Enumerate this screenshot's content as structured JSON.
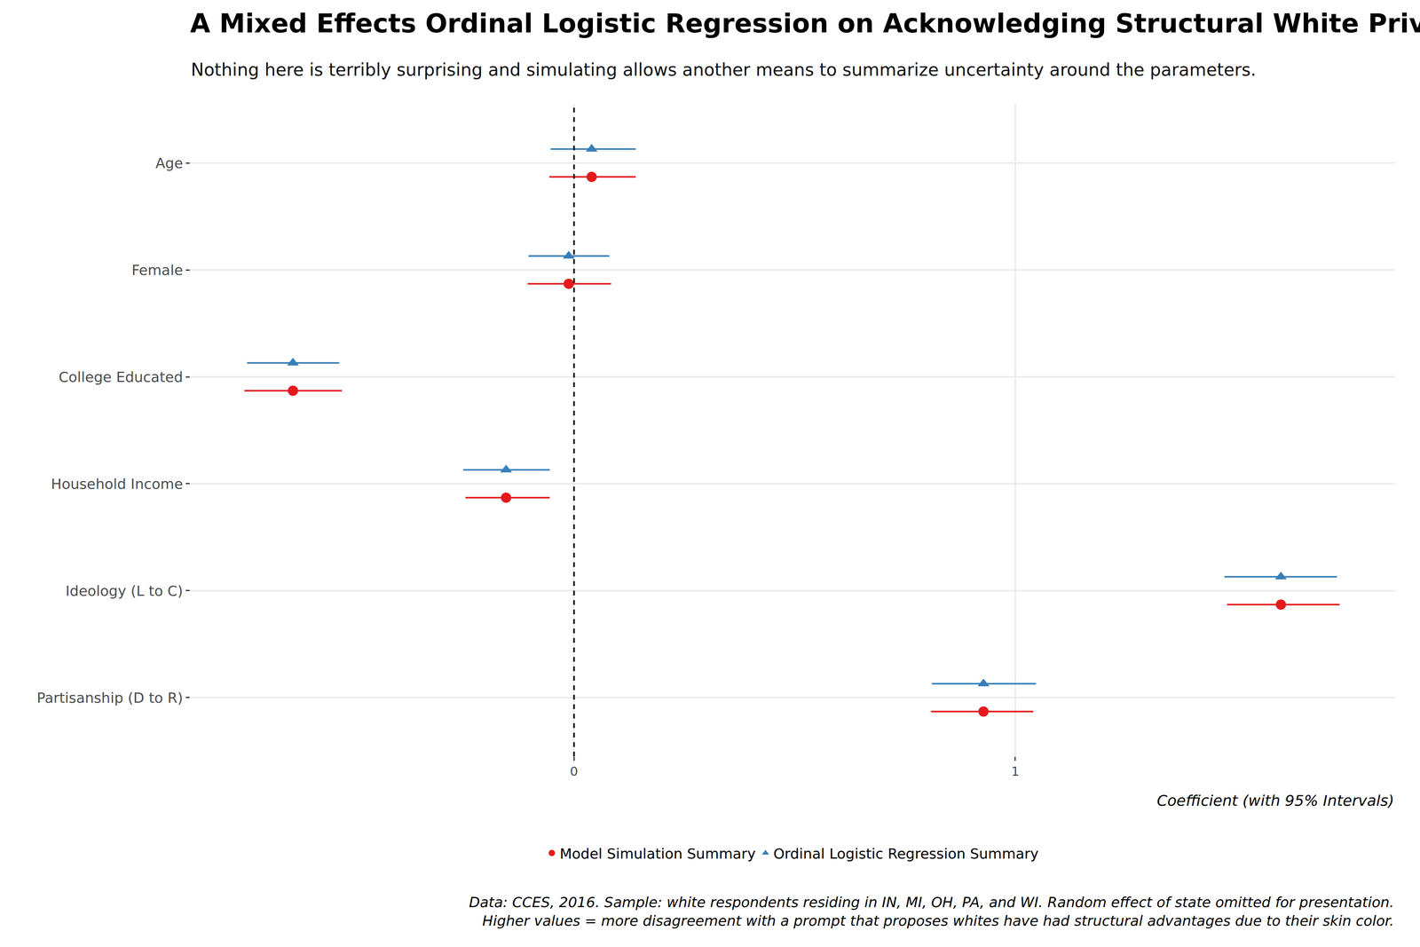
{
  "chart_data": {
    "type": "dot_whisker",
    "title": "A Mixed Effects Ordinal Logistic Regression on Acknowledging Structural White Privilege",
    "subtitle": "Nothing here is terribly surprising and simulating allows another means to summarize uncertainty around the parameters.",
    "xlabel": "Coefficient (with 95% Intervals)",
    "caption": [
      "Data: CCES, 2016. Sample: white respondents residing in IN, MI, OH, PA, and WI. Random effect of state omitted for presentation.",
      "Higher values = more disagreement with a prompt that proposes whites have had structural advantages due to their skin color."
    ],
    "categories": [
      "Age",
      "Female",
      "College Educated",
      "Household Income",
      "Ideology (L to C)",
      "Partisanship (D to R)"
    ],
    "orientation": "horizontal",
    "series": [
      {
        "name": "Model Simulation Summary",
        "color": "#e41a1c",
        "marker": "circle",
        "values": [
          0.04,
          -0.012,
          -0.637,
          -0.154,
          1.602,
          0.928
        ],
        "ci_low": [
          -0.056,
          -0.105,
          -0.747,
          -0.246,
          1.48,
          0.809
        ],
        "ci_high": [
          0.14,
          0.084,
          -0.526,
          -0.055,
          1.735,
          1.041
        ]
      },
      {
        "name": "Ordinal Logistic Regression Summary",
        "color": "#377eb8",
        "marker": "triangle-up",
        "values": [
          0.04,
          -0.012,
          -0.637,
          -0.154,
          1.602,
          0.928
        ],
        "ci_low": [
          -0.053,
          -0.103,
          -0.741,
          -0.251,
          1.474,
          0.811
        ],
        "ci_high": [
          0.14,
          0.08,
          -0.532,
          -0.055,
          1.729,
          1.047
        ]
      }
    ],
    "reference_line": 0,
    "xlim": [
      -0.87,
      1.86
    ],
    "xticks": [
      0,
      1
    ],
    "grid": true,
    "legend": "bottom"
  }
}
